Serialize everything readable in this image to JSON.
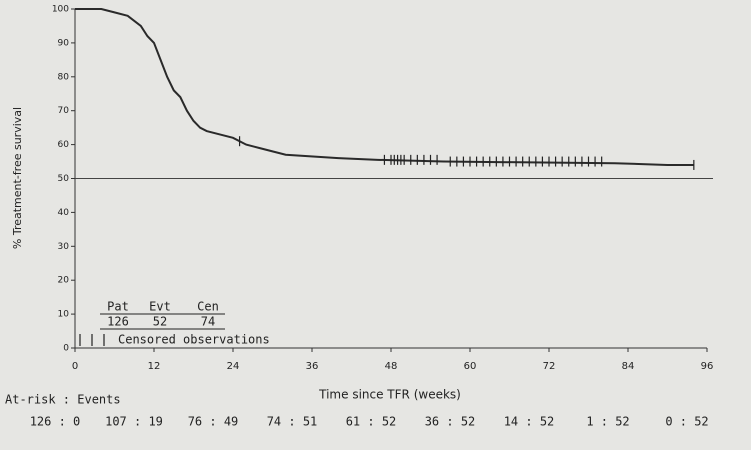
{
  "chart_data": {
    "type": "line",
    "y_label": "% Treatment-free survival",
    "x_label": "Time since TFR (weeks)",
    "xlim": [
      0,
      96
    ],
    "ylim": [
      0,
      100
    ],
    "xticks": [
      0,
      12,
      24,
      36,
      48,
      60,
      72,
      84,
      96
    ],
    "yticks": [
      0,
      10,
      20,
      30,
      40,
      50,
      60,
      70,
      80,
      90,
      100
    ],
    "reference_line": 50,
    "series": [
      {
        "name": "Treatment-free survival",
        "color": "#2a2a2a",
        "x": [
          0,
          4,
          6,
          8,
          10,
          11,
          12,
          13,
          14,
          15,
          16,
          17,
          18,
          19,
          20,
          22,
          24,
          26,
          28,
          30,
          32,
          40,
          46,
          56,
          82,
          90,
          94
        ],
        "values": [
          100,
          100,
          99,
          98,
          95,
          92,
          90,
          85,
          80,
          76,
          74,
          70,
          67,
          65,
          64,
          63,
          62,
          60,
          59,
          58,
          57,
          56,
          55.5,
          55,
          54.5,
          54,
          54
        ]
      }
    ],
    "censored": {
      "name": "Censored observations",
      "x": [
        25,
        47,
        48,
        48.5,
        49,
        49.5,
        50,
        51,
        52,
        53,
        54,
        55,
        57,
        58,
        59,
        60,
        61,
        62,
        63,
        64,
        65,
        66,
        67,
        68,
        69,
        70,
        71,
        72,
        73,
        74,
        75,
        76,
        77,
        78,
        79,
        80,
        94
      ],
      "y": [
        61,
        55.5,
        55.5,
        55.5,
        55.5,
        55.5,
        55.5,
        55.5,
        55.5,
        55.5,
        55.5,
        55.5,
        55,
        55,
        55,
        55,
        55,
        55,
        55,
        55,
        55,
        55,
        55,
        55,
        55,
        55,
        55,
        55,
        55,
        55,
        55,
        55,
        55,
        55,
        55,
        55,
        54
      ]
    },
    "summary": {
      "headers": [
        "Pat",
        "Evt",
        "Cen"
      ],
      "values": [
        "126",
        "52",
        "74"
      ],
      "legend": "Censored observations"
    },
    "at_risk": {
      "label": "At-risk : Events",
      "values": [
        "126 : 0",
        "107 : 19",
        "76 : 49",
        "74 : 51",
        "61 : 52",
        "36 : 52",
        "14 : 52",
        "1 : 52",
        "0 : 52"
      ]
    }
  }
}
